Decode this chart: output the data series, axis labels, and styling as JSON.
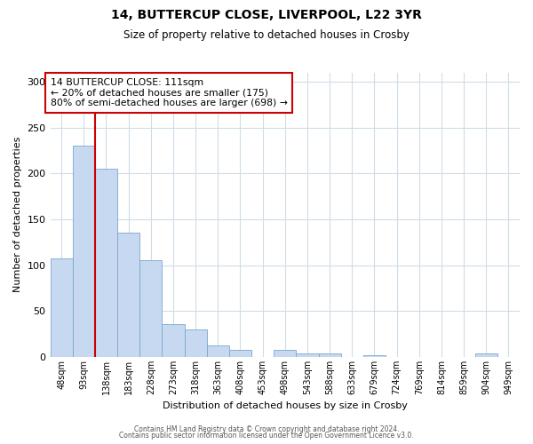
{
  "title": "14, BUTTERCUP CLOSE, LIVERPOOL, L22 3YR",
  "subtitle": "Size of property relative to detached houses in Crosby",
  "xlabel": "Distribution of detached houses by size in Crosby",
  "ylabel": "Number of detached properties",
  "bar_labels": [
    "48sqm",
    "93sqm",
    "138sqm",
    "183sqm",
    "228sqm",
    "273sqm",
    "318sqm",
    "363sqm",
    "408sqm",
    "453sqm",
    "498sqm",
    "543sqm",
    "588sqm",
    "633sqm",
    "679sqm",
    "724sqm",
    "769sqm",
    "814sqm",
    "859sqm",
    "904sqm",
    "949sqm"
  ],
  "bar_values": [
    107,
    230,
    205,
    135,
    105,
    36,
    30,
    13,
    8,
    0,
    8,
    4,
    4,
    0,
    2,
    0,
    0,
    0,
    0,
    4,
    0
  ],
  "bar_color": "#c6d9f0",
  "bar_edgecolor": "#7ba7cc",
  "vline_x": 1.5,
  "vline_color": "#cc0000",
  "annotation_title": "14 BUTTERCUP CLOSE: 111sqm",
  "annotation_line1": "← 20% of detached houses are smaller (175)",
  "annotation_line2": "80% of semi-detached houses are larger (698) →",
  "annotation_box_color": "#cc0000",
  "ylim": [
    0,
    310
  ],
  "yticks": [
    0,
    50,
    100,
    150,
    200,
    250,
    300
  ],
  "footer1": "Contains HM Land Registry data © Crown copyright and database right 2024.",
  "footer2": "Contains public sector information licensed under the Open Government Licence v3.0.",
  "bg_color": "#ffffff",
  "grid_color": "#d0dce8"
}
